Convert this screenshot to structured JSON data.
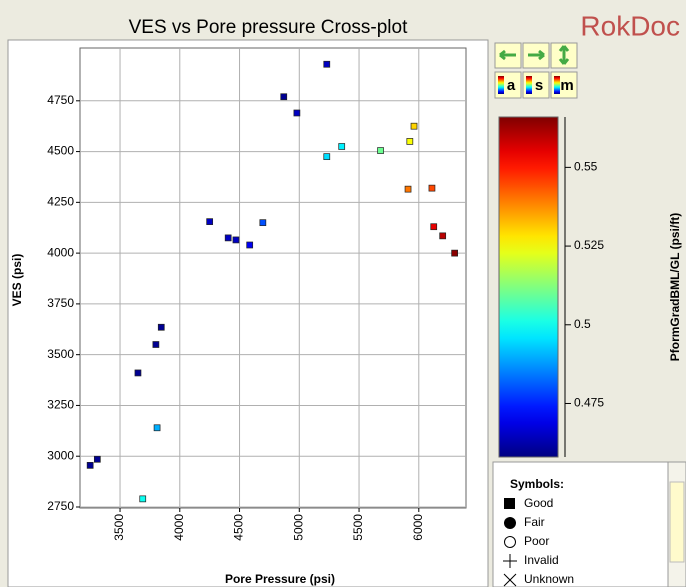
{
  "chart_data": {
    "type": "scatter",
    "title": "VES vs Pore pressure Cross-plot",
    "x_label": "Pore Pressure (psi)",
    "y_label": "VES (psi)",
    "xlim": [
      3165,
      6395
    ],
    "ylim": [
      2745,
      5010
    ],
    "xticks": [
      3500,
      4000,
      4500,
      5000,
      5500,
      6000
    ],
    "yticks": [
      2750,
      3000,
      3250,
      3500,
      3750,
      4000,
      4250,
      4500,
      4750
    ],
    "grid": true,
    "colorbar": {
      "label": "PformGradBML/GL (psi/ft)",
      "colormap": "jet",
      "clim": [
        0.458,
        0.566
      ],
      "ticks": [
        0.475,
        0.5,
        0.525,
        0.55
      ]
    },
    "series": [
      {
        "name": "Good",
        "x": [
          3250,
          3310,
          3690,
          3650,
          3800,
          3845,
          3810,
          4250,
          4405,
          4470,
          4585,
          4695,
          4870,
          4980,
          5230,
          5230,
          5355,
          5680,
          5960,
          5925,
          5910,
          6110,
          6125,
          6200,
          6300
        ],
        "values": [
          2955,
          2985,
          2790,
          3410,
          3550,
          3635,
          3140,
          4155,
          4075,
          4065,
          4040,
          4150,
          4770,
          4690,
          4930,
          4475,
          4525,
          4505,
          4625,
          4550,
          4315,
          4320,
          4130,
          4085,
          4000
        ],
        "color_values": [
          0.46,
          0.46,
          0.5,
          0.46,
          0.46,
          0.46,
          0.49,
          0.465,
          0.465,
          0.465,
          0.47,
          0.48,
          0.46,
          0.465,
          0.465,
          0.495,
          0.497,
          0.51,
          0.53,
          0.525,
          0.54,
          0.545,
          0.555,
          0.56,
          0.565
        ]
      }
    ]
  },
  "ui": {
    "logo": "RokDoc",
    "buttons": [
      "a",
      "s",
      "m"
    ],
    "symbols_title": "Symbols:",
    "symbols": [
      "Good",
      "Fair",
      "Poor",
      "Invalid",
      "Unknown"
    ]
  }
}
